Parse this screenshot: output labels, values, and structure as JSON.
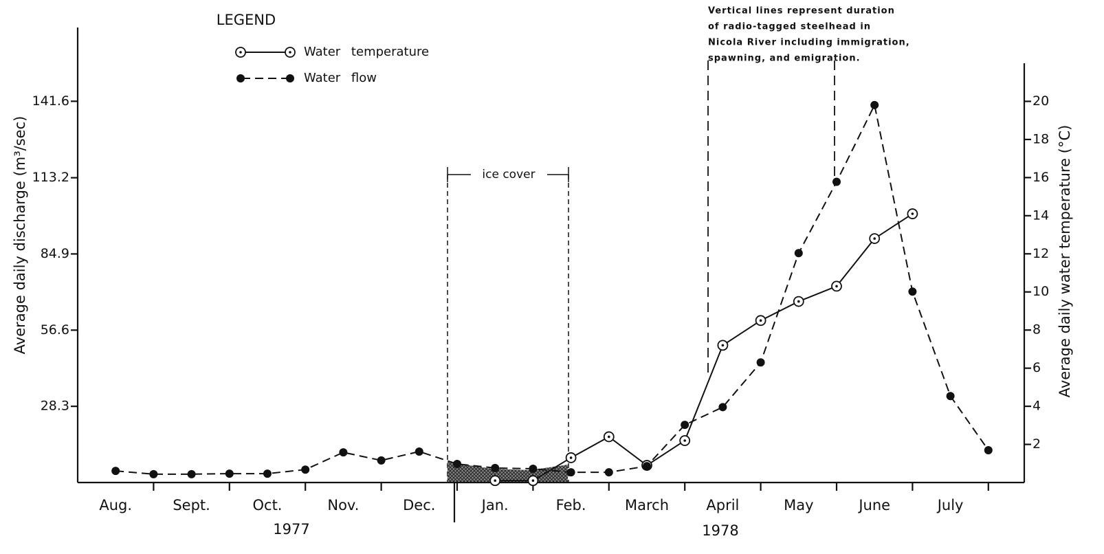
{
  "chart_data": {
    "type": "line",
    "categories": [
      "Aug.",
      null,
      "Sept.",
      null,
      "Oct.",
      null,
      "Nov.",
      null,
      "Dec.",
      null,
      "Jan.",
      null,
      "Feb.",
      null,
      "March",
      null,
      "April",
      null,
      "May",
      null,
      "June",
      null,
      "July",
      null
    ],
    "year_labels": [
      "1977",
      "1978"
    ],
    "ylabel": "Average daily discharge (m³/sec)",
    "y2label": "Average daily water temperature (°C)",
    "ylim": [
      0,
      169
    ],
    "yticks": [
      28.3,
      56.6,
      84.9,
      113.2,
      141.6
    ],
    "y2lim": [
      0,
      22
    ],
    "y2ticks": [
      2,
      4,
      6,
      8,
      10,
      12,
      14,
      16,
      18,
      20
    ],
    "legend_title": "LEGEND",
    "legend": "upper left",
    "series": [
      {
        "name": "Water temperature",
        "color": "#111111",
        "axis": "y2",
        "values": [
          null,
          null,
          null,
          null,
          null,
          null,
          null,
          null,
          null,
          null,
          0.1,
          0.1,
          1.3,
          2.4,
          0.9,
          2.2,
          7.2,
          8.5,
          9.5,
          10.3,
          12.8,
          14.1,
          null,
          null
        ]
      },
      {
        "name": "Water flow",
        "color": "#111111",
        "values": [
          4.3,
          3.1,
          3.1,
          3.3,
          3.3,
          4.8,
          11.2,
          8.2,
          11.5,
          6.9,
          5.4,
          5.1,
          3.8,
          3.8,
          6.1,
          21.4,
          28.0,
          44.6,
          85.2,
          111.7,
          140.2,
          70.9,
          32.1,
          12.0
        ]
      }
    ],
    "annotations": [
      "ice cover"
    ],
    "note_lines": [
      "Vertical lines represent duration",
      "of radio-tagged steelhead in",
      "Nicola River including immigration,",
      "spawning, and emigration."
    ]
  }
}
